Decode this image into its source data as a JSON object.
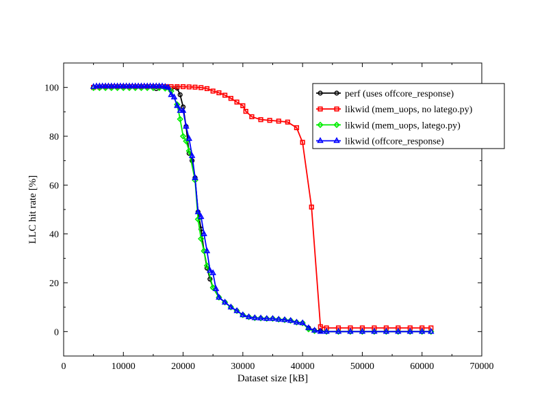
{
  "chart_data": {
    "type": "line",
    "xlabel": "Dataset size [kB]",
    "ylabel": "LLC hit rate [%]",
    "xlim": [
      0,
      70000
    ],
    "ylim": [
      -10,
      110
    ],
    "xticks": [
      0,
      10000,
      20000,
      30000,
      40000,
      50000,
      60000,
      70000
    ],
    "yticks": [
      0,
      20,
      40,
      60,
      80,
      100
    ],
    "grid": false,
    "legend_position": "top-right",
    "series": [
      {
        "name": "perf (uses offcore_response)",
        "color": "#000000",
        "marker": "circle",
        "points": [
          [
            5000,
            100
          ],
          [
            6000,
            100.2
          ],
          [
            7000,
            100.3
          ],
          [
            8000,
            100.3
          ],
          [
            9000,
            100.3
          ],
          [
            10000,
            100.3
          ],
          [
            11000,
            100.3
          ],
          [
            12000,
            100.3
          ],
          [
            13000,
            100.3
          ],
          [
            14000,
            100.3
          ],
          [
            15000,
            100.3
          ],
          [
            15500,
            99.5
          ],
          [
            16000,
            100
          ],
          [
            17000,
            100.1
          ],
          [
            18000,
            99.5
          ],
          [
            19000,
            99.7
          ],
          [
            19500,
            97
          ],
          [
            20000,
            92
          ],
          [
            20500,
            84
          ],
          [
            21000,
            73
          ],
          [
            21500,
            70
          ],
          [
            22000,
            63
          ],
          [
            22500,
            49
          ],
          [
            23000,
            42
          ],
          [
            23500,
            33
          ],
          [
            24000,
            26
          ],
          [
            24500,
            21.5
          ],
          [
            25000,
            18
          ],
          [
            26000,
            14
          ],
          [
            27000,
            12
          ],
          [
            28000,
            10
          ],
          [
            29000,
            8.5
          ],
          [
            30000,
            6.8
          ],
          [
            31000,
            6
          ],
          [
            32000,
            5.6
          ],
          [
            33000,
            5.5
          ],
          [
            34000,
            5.3
          ],
          [
            35000,
            5.3
          ],
          [
            36000,
            5
          ],
          [
            37000,
            4.8
          ],
          [
            38000,
            4.5
          ],
          [
            39000,
            3.8
          ],
          [
            40000,
            3.5
          ],
          [
            41000,
            1.5
          ],
          [
            42000,
            0.5
          ],
          [
            43000,
            0.3
          ],
          [
            44000,
            0
          ],
          [
            46000,
            0
          ],
          [
            48000,
            0
          ],
          [
            50000,
            0
          ],
          [
            52000,
            0
          ],
          [
            54000,
            0
          ],
          [
            56000,
            0
          ],
          [
            58000,
            0
          ],
          [
            60000,
            0
          ],
          [
            61500,
            0
          ]
        ]
      },
      {
        "name": "likwid (mem_uops, no latego.py)",
        "color": "#ff0000",
        "marker": "square",
        "points": [
          [
            5000,
            100
          ],
          [
            6000,
            100.2
          ],
          [
            7000,
            100.3
          ],
          [
            8000,
            100.3
          ],
          [
            9000,
            100.3
          ],
          [
            10000,
            100.3
          ],
          [
            11000,
            100.3
          ],
          [
            12000,
            100.3
          ],
          [
            13000,
            100.3
          ],
          [
            14000,
            100.3
          ],
          [
            15000,
            100.3
          ],
          [
            16000,
            100.3
          ],
          [
            17000,
            100.3
          ],
          [
            18000,
            100.3
          ],
          [
            19000,
            100.3
          ],
          [
            20000,
            100.3
          ],
          [
            21000,
            100.2
          ],
          [
            22000,
            100.1
          ],
          [
            23000,
            99.9
          ],
          [
            24000,
            99.5
          ],
          [
            25000,
            98.5
          ],
          [
            26000,
            97.8
          ],
          [
            27000,
            96.8
          ],
          [
            28000,
            95.5
          ],
          [
            29000,
            94
          ],
          [
            30000,
            92.5
          ],
          [
            30500,
            90.2
          ],
          [
            31500,
            88
          ],
          [
            33000,
            86.8
          ],
          [
            34500,
            86.5
          ],
          [
            36000,
            86.2
          ],
          [
            37500,
            85.8
          ],
          [
            39000,
            83.5
          ],
          [
            40000,
            77.5
          ],
          [
            41500,
            51
          ],
          [
            43000,
            2
          ],
          [
            44000,
            1.5
          ],
          [
            46000,
            1.5
          ],
          [
            48000,
            1.5
          ],
          [
            50000,
            1.5
          ],
          [
            52000,
            1.5
          ],
          [
            54000,
            1.5
          ],
          [
            56000,
            1.5
          ],
          [
            58000,
            1.5
          ],
          [
            60000,
            1.5
          ],
          [
            61500,
            1.5
          ]
        ]
      },
      {
        "name": "likwid (mem_uops, latego.py)",
        "color": "#00ee00",
        "marker": "diamond",
        "points": [
          [
            5000,
            99.8
          ],
          [
            6000,
            99.8
          ],
          [
            7000,
            99.8
          ],
          [
            8000,
            99.8
          ],
          [
            9000,
            99.8
          ],
          [
            10000,
            99.8
          ],
          [
            11000,
            99.8
          ],
          [
            12000,
            99.8
          ],
          [
            13000,
            99.8
          ],
          [
            14000,
            99.8
          ],
          [
            15000,
            99.8
          ],
          [
            16000,
            99.8
          ],
          [
            17000,
            99.6
          ],
          [
            18000,
            98.5
          ],
          [
            19000,
            93
          ],
          [
            19500,
            87
          ],
          [
            20000,
            80
          ],
          [
            20500,
            78
          ],
          [
            21000,
            74
          ],
          [
            22000,
            62
          ],
          [
            22500,
            46
          ],
          [
            23000,
            38
          ],
          [
            23500,
            33
          ],
          [
            24000,
            27
          ],
          [
            25000,
            18
          ],
          [
            26000,
            14
          ],
          [
            27000,
            12
          ],
          [
            28000,
            10
          ],
          [
            29000,
            8.5
          ],
          [
            30000,
            6.8
          ],
          [
            31000,
            6
          ],
          [
            32000,
            5.6
          ],
          [
            33000,
            5.5
          ],
          [
            34000,
            5.3
          ],
          [
            35000,
            5.3
          ],
          [
            36000,
            5
          ],
          [
            37000,
            4.8
          ],
          [
            38000,
            4.5
          ],
          [
            39000,
            3.8
          ],
          [
            40000,
            3.5
          ],
          [
            41000,
            1
          ],
          [
            42000,
            0.3
          ],
          [
            44000,
            0
          ],
          [
            46000,
            0
          ],
          [
            48000,
            0
          ],
          [
            50000,
            0
          ],
          [
            52000,
            0
          ],
          [
            54000,
            0
          ],
          [
            56000,
            0
          ],
          [
            58000,
            0
          ],
          [
            60000,
            0
          ],
          [
            61500,
            0
          ]
        ]
      },
      {
        "name": "likwid (offcore_response)",
        "color": "#0000ff",
        "marker": "triangle",
        "points": [
          [
            5000,
            100.3
          ],
          [
            5500,
            100.5
          ],
          [
            6000,
            100.5
          ],
          [
            6500,
            100.5
          ],
          [
            7000,
            100.5
          ],
          [
            7500,
            100.5
          ],
          [
            8000,
            100.5
          ],
          [
            8500,
            100.5
          ],
          [
            9000,
            100.5
          ],
          [
            9500,
            100.5
          ],
          [
            10000,
            100.5
          ],
          [
            10500,
            100.5
          ],
          [
            11000,
            100.5
          ],
          [
            11500,
            100.5
          ],
          [
            12000,
            100.5
          ],
          [
            12500,
            100.5
          ],
          [
            13000,
            100.5
          ],
          [
            13500,
            100.5
          ],
          [
            14000,
            100.5
          ],
          [
            14500,
            100.5
          ],
          [
            15000,
            100.5
          ],
          [
            15500,
            100.5
          ],
          [
            16000,
            100.5
          ],
          [
            16500,
            100.5
          ],
          [
            17000,
            100.3
          ],
          [
            17500,
            100
          ],
          [
            18000,
            97
          ],
          [
            18500,
            96
          ],
          [
            19000,
            92.5
          ],
          [
            19500,
            90.5
          ],
          [
            20000,
            90.5
          ],
          [
            20500,
            84
          ],
          [
            21000,
            79
          ],
          [
            21500,
            72
          ],
          [
            22000,
            63
          ],
          [
            22500,
            49
          ],
          [
            23000,
            47
          ],
          [
            23500,
            40
          ],
          [
            24000,
            33
          ],
          [
            24500,
            25
          ],
          [
            25000,
            24
          ],
          [
            25500,
            17.5
          ],
          [
            26000,
            14
          ],
          [
            27000,
            12
          ],
          [
            28000,
            10
          ],
          [
            29000,
            8.5
          ],
          [
            30000,
            6.8
          ],
          [
            31000,
            6
          ],
          [
            32000,
            5.6
          ],
          [
            33000,
            5.5
          ],
          [
            34000,
            5.3
          ],
          [
            35000,
            5.3
          ],
          [
            36000,
            5
          ],
          [
            37000,
            4.8
          ],
          [
            38000,
            4.5
          ],
          [
            39000,
            3.8
          ],
          [
            40000,
            3.5
          ],
          [
            41000,
            1.5
          ],
          [
            42000,
            0.5
          ],
          [
            43000,
            0
          ],
          [
            44000,
            0
          ],
          [
            46000,
            0
          ],
          [
            48000,
            0
          ],
          [
            50000,
            0
          ],
          [
            52000,
            0
          ],
          [
            54000,
            0
          ],
          [
            56000,
            0
          ],
          [
            58000,
            0
          ],
          [
            60000,
            0
          ],
          [
            61500,
            0
          ]
        ]
      }
    ]
  }
}
